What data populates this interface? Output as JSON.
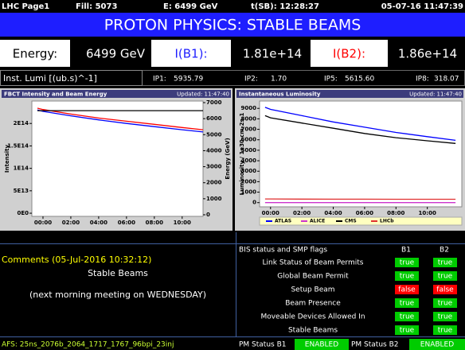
{
  "header": {
    "page": "LHC Page1",
    "fill": "Fill: 5073",
    "energy": "E:  6499 GeV",
    "time_sb": "t(SB): 12:28:27",
    "datetime": "05-07-16 11:47:39"
  },
  "banner": "PROTON PHYSICS: STABLE BEAMS",
  "beam": {
    "energy_label": "Energy:",
    "energy_value": "6499 GeV",
    "i_b1_label": "I(B1):",
    "i_b1_value": "1.81e+14",
    "i_b2_label": "I(B2):",
    "i_b2_value": "1.86e+14"
  },
  "lumi": {
    "label": "Inst. Lumi [(ub.s)^-1]",
    "ips": [
      {
        "label": "IP1:",
        "value": "5935.79"
      },
      {
        "label": "IP2:",
        "value": "1.70"
      },
      {
        "label": "IP5:",
        "value": "5615.60"
      },
      {
        "label": "IP8:",
        "value": "318.07"
      }
    ]
  },
  "chart_data": [
    {
      "type": "line",
      "title": "FBCT Intensity and Beam Energy",
      "updated": "Updated: 11:47:40",
      "ylabel": "Intensity",
      "y2label": "Energy (GeV)",
      "x": [
        -0.4,
        0,
        2,
        4,
        6,
        8,
        10,
        11.5
      ],
      "xlim": [
        -0.8,
        11.5
      ],
      "xticks": [
        {
          "value": 0,
          "label": "00:00"
        },
        {
          "value": 2,
          "label": "02:00"
        },
        {
          "value": 4,
          "label": "04:00"
        },
        {
          "value": 6,
          "label": "06:00"
        },
        {
          "value": 8,
          "label": "08:00"
        },
        {
          "value": 10,
          "label": "10:00"
        }
      ],
      "ylim": [
        -7000000000000.0,
        250000000000000.0
      ],
      "yticks": [
        {
          "value": 0,
          "label": "0E0"
        },
        {
          "value": 50000000000000.0,
          "label": "5E13"
        },
        {
          "value": 100000000000000.0,
          "label": "1E14"
        },
        {
          "value": 150000000000000.0,
          "label": "1.5E14"
        },
        {
          "value": 200000000000000.0,
          "label": "2E14"
        }
      ],
      "y2lim": [
        -100,
        7100
      ],
      "y2ticks": [
        0,
        1000,
        2000,
        3000,
        4000,
        5000,
        6000,
        7000
      ],
      "series": [
        {
          "color": "#0000ff",
          "values": [
            230000000000000.0,
            227000000000000.0,
            217000000000000.0,
            208000000000000.0,
            200000000000000.0,
            193000000000000.0,
            186000000000000.0,
            181000000000000.0
          ]
        },
        {
          "color": "#ff0000",
          "values": [
            234000000000000.0,
            231000000000000.0,
            221000000000000.0,
            212000000000000.0,
            205000000000000.0,
            198000000000000.0,
            191000000000000.0,
            186000000000000.0
          ]
        },
        {
          "color": "#000000",
          "axis": "y2",
          "values": [
            6499,
            6499,
            6499,
            6499,
            6499,
            6499,
            6499,
            6499
          ]
        }
      ]
    },
    {
      "type": "line",
      "title": "Instantaneous Luminosity",
      "updated": "Updated: 11:47:40",
      "ylabel": "Luminosity / 1e30 cm-2s-1",
      "x": [
        -0.35,
        0,
        2,
        4,
        6,
        8,
        10,
        11.8
      ],
      "xlim": [
        -0.7,
        12.2
      ],
      "xticks": [
        {
          "value": 0,
          "label": "00:00"
        },
        {
          "value": 2,
          "label": "02:00"
        },
        {
          "value": 4,
          "label": "04:00"
        },
        {
          "value": 6,
          "label": "06:00"
        },
        {
          "value": 8,
          "label": "08:00"
        },
        {
          "value": 10,
          "label": "10:00"
        }
      ],
      "ylim": [
        -400,
        9700
      ],
      "yticks": [
        0,
        1000,
        2000,
        3000,
        4000,
        5000,
        6000,
        7000,
        8000,
        9000
      ],
      "series": [
        {
          "name": "ATLAS",
          "color": "#0000ff",
          "values": [
            9100,
            8900,
            8300,
            7700,
            7200,
            6700,
            6300,
            5950
          ]
        },
        {
          "name": "ALICE",
          "color": "#cc33cc",
          "values": [
            2,
            2,
            2,
            2,
            2,
            2,
            2,
            1.7
          ]
        },
        {
          "name": "CMS",
          "color": "#000000",
          "values": [
            8300,
            8100,
            7600,
            7100,
            6600,
            6200,
            5900,
            5650
          ]
        },
        {
          "name": "LHCb",
          "color": "#e03030",
          "values": [
            350,
            350,
            340,
            330,
            330,
            320,
            320,
            318
          ]
        }
      ]
    }
  ],
  "comments": {
    "title": "Comments (05-Jul-2016 10:32:12)",
    "lines": [
      "Stable Beams",
      "(next morning meeting on WEDNESDAY)"
    ]
  },
  "flags": {
    "title": "BIS status and SMP flags",
    "columns": [
      "B1",
      "B2"
    ],
    "rows": [
      {
        "label": "Link Status of Beam Permits",
        "b1": "true",
        "b2": "true"
      },
      {
        "label": "Global Beam Permit",
        "b1": "true",
        "b2": "true"
      },
      {
        "label": "Setup Beam",
        "b1": "false",
        "b2": "false"
      },
      {
        "label": "Beam Presence",
        "b1": "true",
        "b2": "true"
      },
      {
        "label": "Moveable Devices Allowed In",
        "b1": "true",
        "b2": "true"
      },
      {
        "label": "Stable Beams",
        "b1": "true",
        "b2": "true"
      }
    ]
  },
  "footer": {
    "afs": "AFS: 25ns_2076b_2064_1717_1767_96bpi_23inj",
    "pm_b1_label": "PM Status B1",
    "pm_b1_value": "ENABLED",
    "pm_b2_label": "PM Status B2",
    "pm_b2_value": "ENABLED"
  }
}
